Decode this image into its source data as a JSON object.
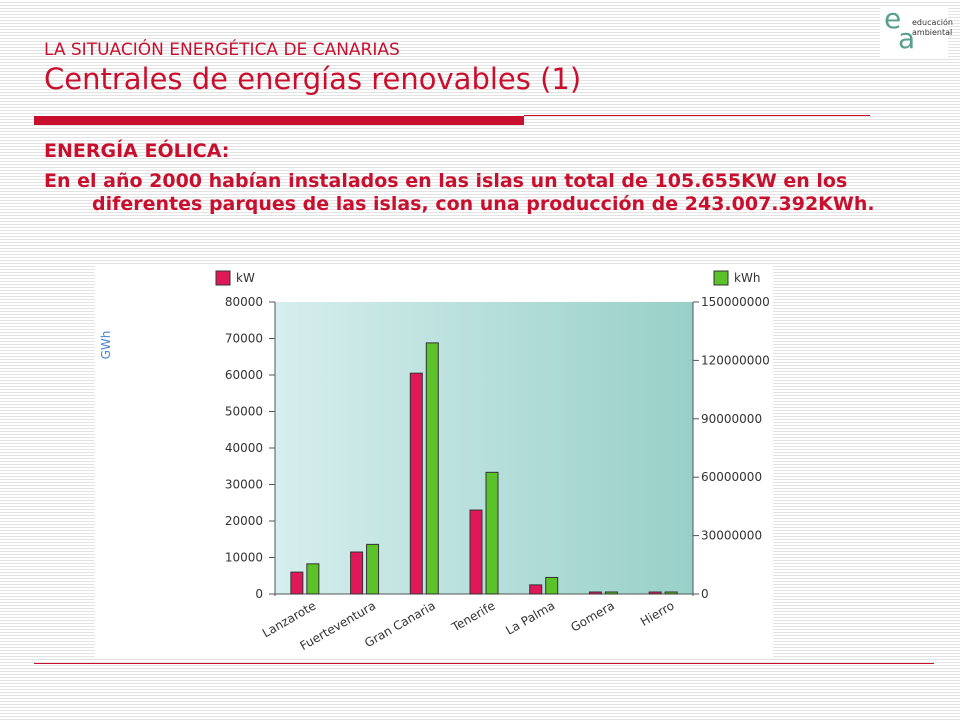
{
  "slide": {
    "supertitle": "LA SITUACIÓN ENERGÉTICA DE CANARIAS",
    "title": "Centrales de energías renovables (1)",
    "heading": "ENERGÍA EÓLICA:",
    "paragraph": "En el año 2000 habían instalados en las islas un total de 105.655KW en los diferentes parques de las islas, con una producción de 243.007.392KWh."
  },
  "logo": {
    "letter_e": "e",
    "letter_a": "a",
    "line1": "educación",
    "line2": "ambiental"
  },
  "colors": {
    "accent": "#c8102e",
    "kw_bar": "#e0185a",
    "kwh_bar": "#5cc22a",
    "plot_left": "#d6eeee",
    "plot_right": "#98d0c8"
  },
  "chart_data": {
    "type": "bar",
    "categories": [
      "Lanzarote",
      "Fuerteventura",
      "Gran Canaria",
      "Tenerife",
      "La Palma",
      "Gomera",
      "Hierro"
    ],
    "series": [
      {
        "name": "kW",
        "axis": "left",
        "values": [
          6000,
          11500,
          60500,
          23000,
          2500,
          300,
          300
        ]
      },
      {
        "name": "kWh",
        "axis": "right",
        "values": [
          15500000,
          25500000,
          129000000,
          62500000,
          8500000,
          1000000,
          1000000
        ]
      }
    ],
    "ylabel": "GWh",
    "y_left": {
      "range": [
        0,
        80000
      ],
      "ticks": [
        "80000",
        "70000",
        "60000",
        "50000",
        "40000",
        "30000",
        "20000",
        "10000",
        "0"
      ]
    },
    "y_right": {
      "range": [
        0,
        150000000
      ],
      "ticks": [
        "150000000",
        "120000000",
        "90000000",
        "60000000",
        "30000000",
        "0"
      ]
    },
    "grid": false
  }
}
